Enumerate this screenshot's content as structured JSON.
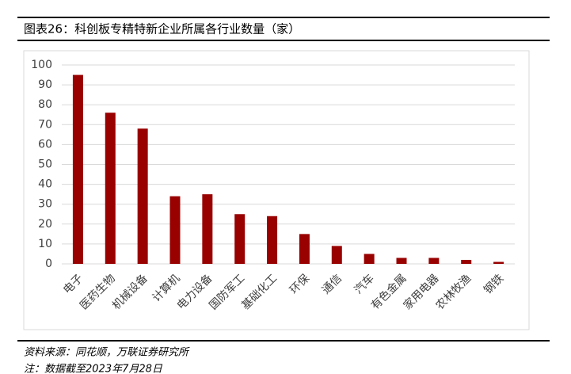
{
  "chart_data": {
    "type": "bar",
    "title": "图表26：科创板专精特新企业所属各行业数量（家）",
    "categories": [
      "电子",
      "医药生物",
      "机械设备",
      "计算机",
      "电力设备",
      "国防军工",
      "基础化工",
      "环保",
      "通信",
      "汽车",
      "有色金属",
      "家用电器",
      "农林牧渔",
      "钢铁"
    ],
    "values": [
      95,
      76,
      68,
      34,
      35,
      25,
      24,
      15,
      9,
      5,
      3,
      3,
      2,
      1
    ],
    "color": "#990000",
    "ylim": [
      0,
      100
    ],
    "yticks": [
      0,
      10,
      20,
      30,
      40,
      50,
      60,
      70,
      80,
      90,
      100
    ],
    "grid": true,
    "source": "资料来源：同花顺，万联证券研究所",
    "note": "注：数据截至2023年7月28日"
  }
}
